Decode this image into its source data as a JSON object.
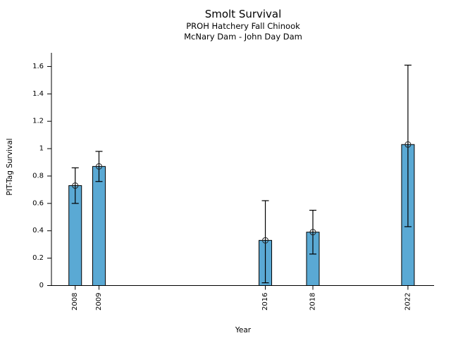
{
  "figure": {
    "title": "Smolt Survival",
    "subtitle1": "PROH Hatchery Fall Chinook",
    "subtitle2": "McNary Dam - John Day Dam"
  },
  "chart_data": {
    "type": "bar",
    "title": "Smolt Survival",
    "subtitle1": "PROH Hatchery Fall Chinook",
    "subtitle2": "McNary Dam - John Day Dam",
    "xlabel": "Year",
    "ylabel": "PIT-Tag Survival",
    "categories": [
      2008,
      2009,
      2016,
      2018,
      2022
    ],
    "x_tick_labels": [
      "2008",
      "2009",
      "2016",
      "2018",
      "2022"
    ],
    "values": [
      0.73,
      0.87,
      0.33,
      0.39,
      1.03
    ],
    "error_low": [
      0.6,
      0.76,
      0.02,
      0.23,
      0.43
    ],
    "error_high": [
      0.86,
      0.98,
      0.62,
      0.55,
      1.61
    ],
    "y_ticks": [
      0,
      0.2,
      0.4,
      0.6,
      0.8,
      1,
      1.2,
      1.4,
      1.6
    ],
    "y_tick_labels": [
      "0",
      "0.2",
      "0.4",
      "0.6",
      "0.8",
      "1",
      "1.2",
      "1.4",
      "1.6"
    ],
    "ylim": [
      0,
      1.7
    ],
    "xlim": [
      2007,
      2023.1
    ],
    "grid": false,
    "legend": null,
    "marker": "open-circle",
    "colors": {
      "bar_fill": "#5AA9D4",
      "bar_edge": "#000000",
      "error_bar": "#000000",
      "marker_edge": "#222222",
      "axis": "#000000",
      "text": "#000000"
    }
  }
}
